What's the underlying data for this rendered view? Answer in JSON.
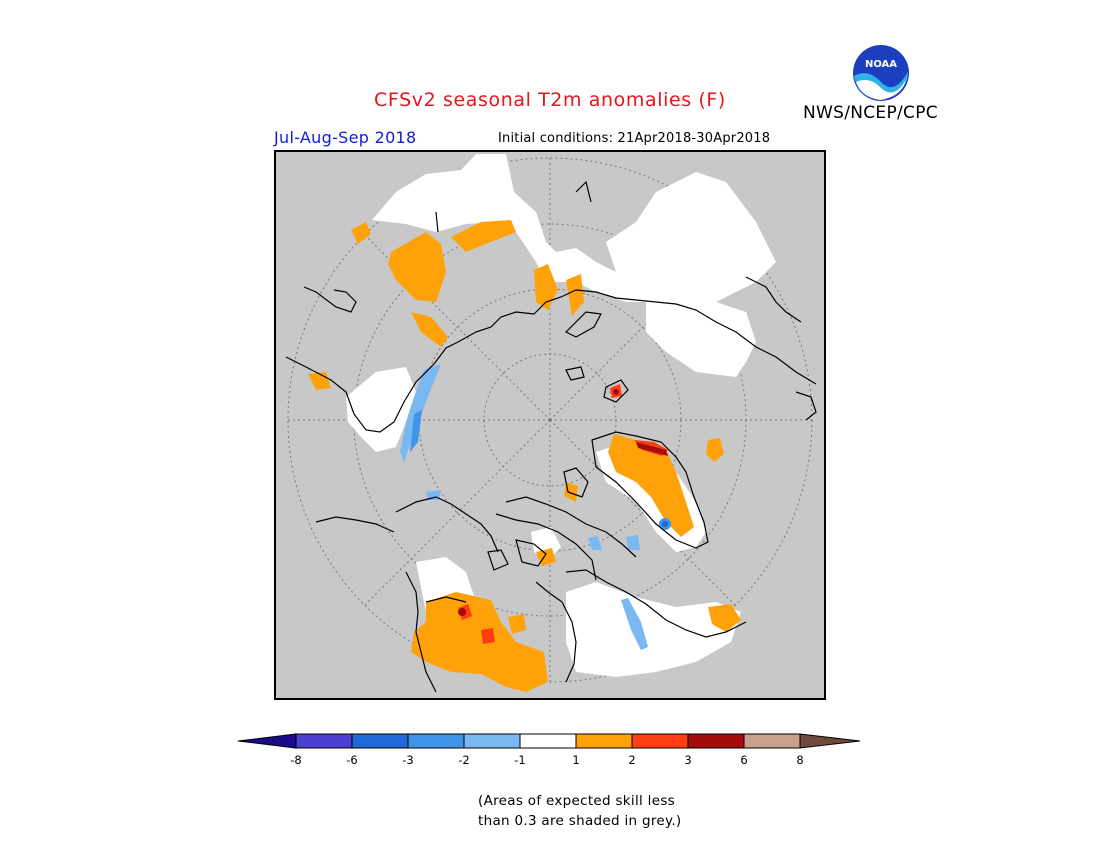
{
  "title": "CFSv2 seasonal T2m anomalies (F)",
  "season": "Jul-Aug-Sep 2018",
  "initial_conditions": "Initial conditions: 21Apr2018-30Apr2018",
  "agency": "NWS/NCEP/CPC",
  "logo_text": "NOAA",
  "legend": {
    "ticks": [
      "-8",
      "-6",
      "-3",
      "-2",
      "-1",
      "1",
      "2",
      "3",
      "6",
      "8"
    ],
    "colors": {
      "below_neg8": "#1c0a8c",
      "neg8_neg6": "#4c3fd0",
      "neg6_neg3": "#1f6ad6",
      "neg3_neg2": "#3e95ea",
      "neg2_neg1": "#7ab8f2",
      "neg1_1": "#ffffff",
      "1_2": "#ffa20a",
      "2_3": "#ff3d10",
      "3_6": "#a50b0b",
      "6_8": "#c8a08c",
      "above_8": "#6e4a3c"
    }
  },
  "low_skill_color": "#c8c8c8",
  "footnote": {
    "line1": "(Areas of expected skill less",
    "line2": "than 0.3 are shaded in grey.)"
  }
}
